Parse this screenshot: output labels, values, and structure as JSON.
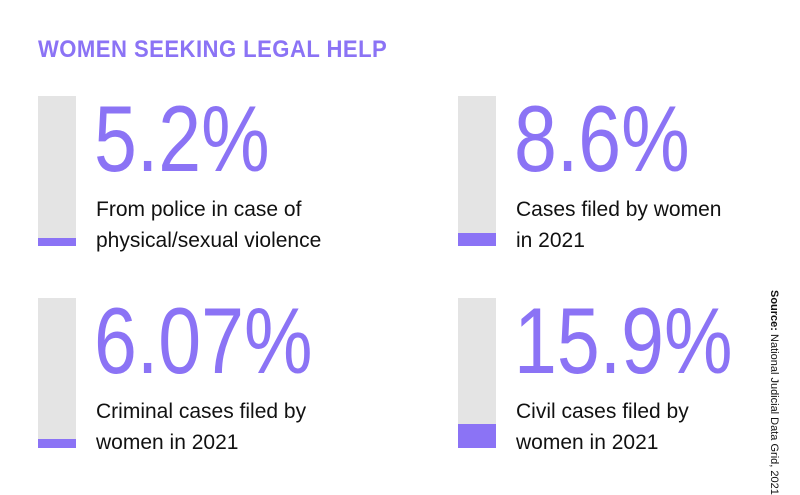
{
  "title": "WOMEN SEEKING LEGAL HELP",
  "source": {
    "label": "Source:",
    "text": "National Judicial Data Grid, 2021"
  },
  "colors": {
    "accent": "#8b73f5",
    "track": "#e4e4e4",
    "text": "#111111"
  },
  "chart_data": {
    "type": "bar",
    "title": "WOMEN SEEKING LEGAL HELP",
    "ylim": [
      0,
      100
    ],
    "categories": [
      "From police in case of physical/sexual violence",
      "Cases filed by women in 2021",
      "Criminal cases filed by women in 2021",
      "Civil cases filed by women in 2021"
    ],
    "values": [
      5.2,
      8.6,
      6.07,
      15.9
    ],
    "items": [
      {
        "value": 5.2,
        "display": "5.2%",
        "label_lines": [
          "From police in case of",
          "physical/sexual violence"
        ]
      },
      {
        "value": 8.6,
        "display": "8.6%",
        "label_lines": [
          "Cases filed by women",
          "in 2021"
        ]
      },
      {
        "value": 6.07,
        "display": "6.07%",
        "label_lines": [
          "Criminal cases filed by",
          "women in 2021"
        ]
      },
      {
        "value": 15.9,
        "display": "15.9%",
        "label_lines": [
          "Civil cases filed by",
          "women in 2021"
        ]
      }
    ]
  }
}
